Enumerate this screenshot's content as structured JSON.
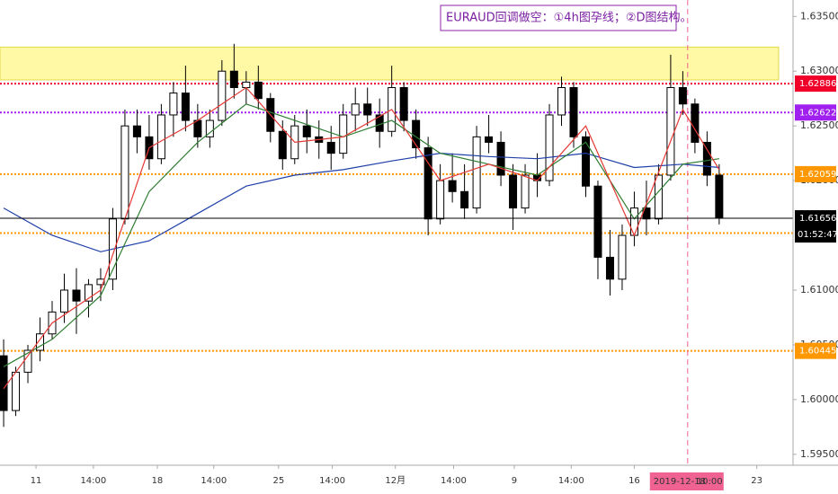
{
  "chart_data": {
    "type": "candlestick",
    "annotation": "EURAUD回调做空：①4h图孕线；②D图结构。",
    "ylim": [
      1.594,
      1.6365
    ],
    "yticks": [
      {
        "value": 1.635,
        "label": "1.63500"
      },
      {
        "value": 1.63,
        "label": "1.63000"
      },
      {
        "value": 1.625,
        "label": "1.62500"
      },
      {
        "value": 1.62,
        "label": "1.62000"
      },
      {
        "value": 1.61,
        "label": "1.61000"
      },
      {
        "value": 1.605,
        "label": "1.60500"
      },
      {
        "value": 1.6,
        "label": "1.60000"
      },
      {
        "value": 1.595,
        "label": "1.59500"
      }
    ],
    "xlim": [
      -0.3,
      64.2
    ],
    "xticks": [
      {
        "value": 2.67,
        "label": "11"
      },
      {
        "value": 7.4,
        "label": "14:00"
      },
      {
        "value": 12.67,
        "label": "18"
      },
      {
        "value": 17.33,
        "label": "14:00"
      },
      {
        "value": 22.67,
        "label": "25"
      },
      {
        "value": 27.1,
        "label": "14:00"
      },
      {
        "value": 32.3,
        "label": "12月"
      },
      {
        "value": 37.1,
        "label": "14:00"
      },
      {
        "value": 42.1,
        "label": "9"
      },
      {
        "value": 46.8,
        "label": "14:00"
      },
      {
        "value": 52,
        "label": "16"
      },
      {
        "value": 62.1,
        "label": "23"
      }
    ],
    "up_color": "#ffffff",
    "down_color": "#000000",
    "candles": [
      [
        1.604,
        1.6055,
        1.5975,
        1.599
      ],
      [
        1.599,
        1.603,
        1.5985,
        1.6025
      ],
      [
        1.6025,
        1.605,
        1.6015,
        1.6045
      ],
      [
        1.6045,
        1.6075,
        1.6035,
        1.606
      ],
      [
        1.606,
        1.609,
        1.6055,
        1.608
      ],
      [
        1.608,
        1.6115,
        1.607,
        1.61
      ],
      [
        1.61,
        1.612,
        1.606,
        1.609
      ],
      [
        1.609,
        1.611,
        1.6075,
        1.6105
      ],
      [
        1.6105,
        1.612,
        1.609,
        1.611
      ],
      [
        1.611,
        1.6175,
        1.61,
        1.6165
      ],
      [
        1.6165,
        1.6265,
        1.616,
        1.625
      ],
      [
        1.625,
        1.6265,
        1.6225,
        1.624
      ],
      [
        1.624,
        1.626,
        1.621,
        1.622
      ],
      [
        1.622,
        1.627,
        1.6215,
        1.626
      ],
      [
        1.626,
        1.629,
        1.624,
        1.628
      ],
      [
        1.628,
        1.6305,
        1.6245,
        1.6255
      ],
      [
        1.6255,
        1.627,
        1.623,
        1.624
      ],
      [
        1.624,
        1.6265,
        1.623,
        1.6255
      ],
      [
        1.6255,
        1.631,
        1.625,
        1.63
      ],
      [
        1.63,
        1.6325,
        1.6275,
        1.6285
      ],
      [
        1.6285,
        1.63,
        1.627,
        1.629
      ],
      [
        1.629,
        1.6305,
        1.6265,
        1.6275
      ],
      [
        1.6275,
        1.628,
        1.6235,
        1.6245
      ],
      [
        1.6245,
        1.6255,
        1.621,
        1.622
      ],
      [
        1.622,
        1.626,
        1.6215,
        1.625
      ],
      [
        1.625,
        1.6265,
        1.6225,
        1.624
      ],
      [
        1.624,
        1.6255,
        1.622,
        1.6235
      ],
      [
        1.6235,
        1.625,
        1.621,
        1.6225
      ],
      [
        1.6225,
        1.627,
        1.622,
        1.626
      ],
      [
        1.626,
        1.6285,
        1.6245,
        1.627
      ],
      [
        1.627,
        1.6285,
        1.625,
        1.626
      ],
      [
        1.626,
        1.6275,
        1.623,
        1.6245
      ],
      [
        1.6245,
        1.6305,
        1.624,
        1.6285
      ],
      [
        1.6285,
        1.629,
        1.6245,
        1.6255
      ],
      [
        1.6255,
        1.6265,
        1.622,
        1.623
      ],
      [
        1.623,
        1.624,
        1.615,
        1.6165
      ],
      [
        1.6165,
        1.6215,
        1.616,
        1.62
      ],
      [
        1.62,
        1.6225,
        1.618,
        1.619
      ],
      [
        1.619,
        1.6215,
        1.6165,
        1.6175
      ],
      [
        1.6175,
        1.625,
        1.617,
        1.624
      ],
      [
        1.624,
        1.626,
        1.6225,
        1.6235
      ],
      [
        1.6235,
        1.6245,
        1.6195,
        1.6205
      ],
      [
        1.6205,
        1.6215,
        1.6155,
        1.6175
      ],
      [
        1.6175,
        1.6215,
        1.617,
        1.6205
      ],
      [
        1.6205,
        1.6225,
        1.6185,
        1.62
      ],
      [
        1.62,
        1.627,
        1.6195,
        1.626
      ],
      [
        1.626,
        1.6295,
        1.625,
        1.6285
      ],
      [
        1.6285,
        1.629,
        1.623,
        1.624
      ],
      [
        1.624,
        1.6245,
        1.6185,
        1.6195
      ],
      [
        1.6195,
        1.62,
        1.611,
        1.613
      ],
      [
        1.613,
        1.6155,
        1.6095,
        1.611
      ],
      [
        1.611,
        1.616,
        1.61,
        1.615
      ],
      [
        1.615,
        1.619,
        1.614,
        1.6175
      ],
      [
        1.6175,
        1.62,
        1.615,
        1.6165
      ],
      [
        1.6165,
        1.6215,
        1.616,
        1.6205
      ],
      [
        1.6205,
        1.6315,
        1.62,
        1.6285
      ],
      [
        1.6285,
        1.63,
        1.626,
        1.627
      ],
      [
        1.627,
        1.6275,
        1.6225,
        1.6235
      ],
      [
        1.6235,
        1.6245,
        1.6195,
        1.6205
      ],
      [
        1.6205,
        1.6215,
        1.616,
        1.6166
      ]
    ],
    "series": [
      {
        "color": "#1e3fa8",
        "x": [
          0,
          4,
          8,
          12,
          16,
          20,
          24,
          28,
          32,
          36,
          40,
          44,
          48,
          52,
          56,
          59
        ],
        "values": [
          1.6175,
          1.615,
          1.6135,
          1.6145,
          1.617,
          1.6195,
          1.6205,
          1.621,
          1.6218,
          1.6225,
          1.6222,
          1.622,
          1.6225,
          1.6212,
          1.6215,
          1.6212
        ]
      },
      {
        "color": "#2e7d32",
        "x": [
          0,
          4,
          8,
          12,
          16,
          20,
          24,
          28,
          32,
          36,
          40,
          44,
          48,
          52,
          56,
          59
        ],
        "values": [
          1.603,
          1.6055,
          1.6095,
          1.619,
          1.6235,
          1.627,
          1.6255,
          1.624,
          1.6255,
          1.6225,
          1.6215,
          1.6205,
          1.6235,
          1.6165,
          1.6215,
          1.622
        ]
      },
      {
        "color": "#e53935",
        "x": [
          0,
          4,
          8,
          12,
          16,
          20,
          24,
          28,
          32,
          36,
          40,
          44,
          48,
          52,
          56,
          59
        ],
        "values": [
          1.601,
          1.607,
          1.61,
          1.623,
          1.6255,
          1.6285,
          1.6235,
          1.624,
          1.6265,
          1.62,
          1.6215,
          1.62,
          1.625,
          1.615,
          1.6265,
          1.621
        ]
      }
    ],
    "zone": {
      "from": 1.6292,
      "to": 1.6322,
      "color": "#fff9a6"
    },
    "levels": [
      {
        "value": 1.62886,
        "color": "#f00028"
      },
      {
        "value": 1.62622,
        "color": "#a020f0"
      },
      {
        "value": 1.62059,
        "color": "#ff9800"
      },
      {
        "value": 1.61521,
        "color": "#ff9800"
      },
      {
        "value": 1.60445,
        "color": "#ff9800"
      }
    ],
    "last_price": {
      "value": 1.61656,
      "color": "#000000",
      "countdown": "01:52:47"
    },
    "crosshair": {
      "x": 56.4,
      "date_label": "2019-12-18",
      "time_label": "10:00",
      "color": "#f06292"
    }
  }
}
